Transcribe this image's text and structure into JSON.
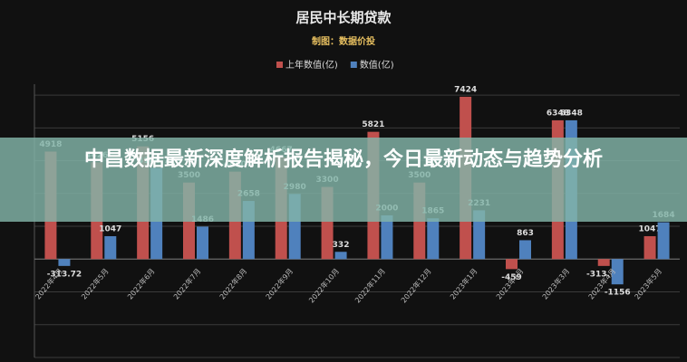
{
  "chart_data": {
    "type": "bar",
    "title": "居民中长期贷款",
    "subtitle": "制图：数据价投",
    "categories": [
      "2022年4月",
      "2022年5月",
      "2022年6月",
      "2022年7月",
      "2022年8月",
      "2022年9月",
      "2022年10月",
      "2022年11月",
      "2022年12月",
      "2023年1月",
      "2023年2月",
      "2023年3月",
      "2023年4月",
      "2023年5月"
    ],
    "series": [
      {
        "name": "上年数值(亿)",
        "color": "#c0504d",
        "values": [
          4918,
          4426,
          5156,
          3500,
          4000,
          4667,
          3300,
          5821,
          3500,
          7424,
          -459,
          6348,
          -313.72,
          1047
        ]
      },
      {
        "name": "数值(亿)",
        "color": "#4f81bd",
        "values": [
          -313.72,
          1047,
          4166.72,
          1486,
          2658,
          2980,
          332,
          2000,
          1865,
          2231,
          863,
          6348,
          -1156,
          1684
        ]
      }
    ],
    "ylim": [
      -4500,
      8000
    ],
    "yticks": [
      -4500,
      -3000,
      -1500,
      0,
      1500,
      3000,
      4500,
      6000,
      7500
    ],
    "grid": true
  },
  "overlay_headline": "中昌数据最新深度解析报告揭秘，今日最新动态与趋势分析"
}
